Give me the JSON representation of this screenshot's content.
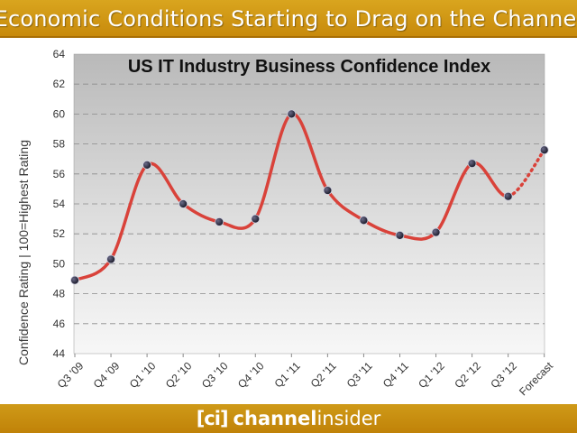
{
  "banner": {
    "title": "Economic Conditions Starting to Drag on the Channel"
  },
  "footer": {
    "logo_bracket": "[ci]",
    "logo_word1": "channel",
    "logo_word2": "insider"
  },
  "colors": {
    "banner": "#c98d0e",
    "line": "#d9423a",
    "marker": "#222233"
  },
  "chart_data": {
    "type": "line",
    "title": "US IT Industry Business Confidence Index",
    "ylabel": "Confidence Rating | 100=Highest Rating",
    "xlabel": "",
    "ylim": [
      44,
      64
    ],
    "yticks": [
      44,
      46,
      48,
      50,
      52,
      54,
      56,
      58,
      60,
      62,
      64
    ],
    "grid": true,
    "categories": [
      "Q3 '09",
      "Q4 '09",
      "Q1 '10",
      "Q2 '10",
      "Q3 '10",
      "Q4 '10",
      "Q1 '11",
      "Q2 '11",
      "Q3 '11",
      "Q4 '11",
      "Q1 '12",
      "Q2 '12",
      "Q3 '12",
      "Forecast"
    ],
    "values": [
      48.9,
      50.3,
      56.6,
      54.0,
      52.8,
      53.0,
      60.0,
      54.9,
      52.9,
      51.9,
      52.1,
      56.7,
      54.5,
      57.6
    ],
    "forecast_from_index": 12
  }
}
